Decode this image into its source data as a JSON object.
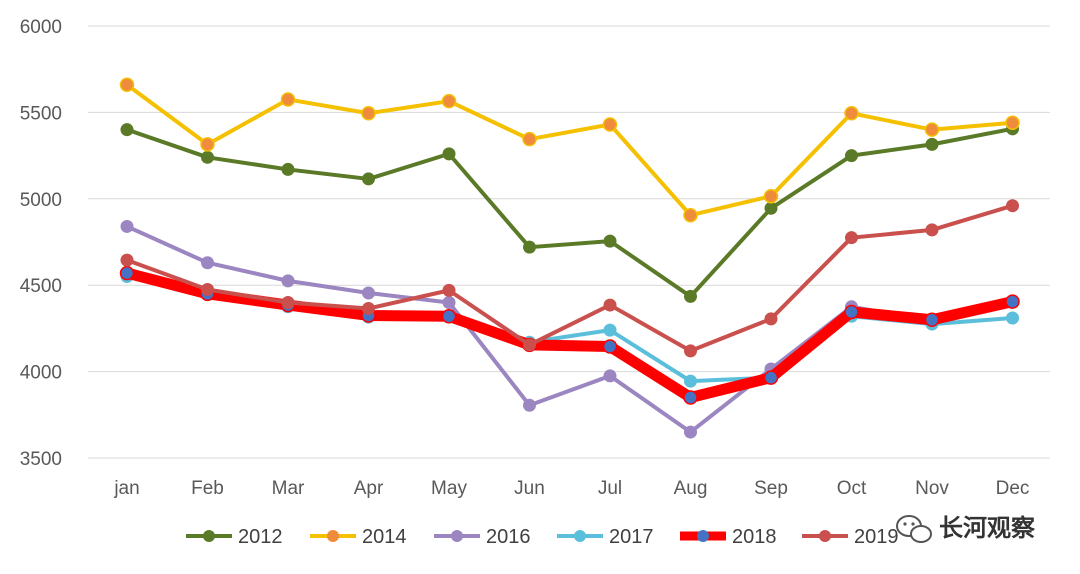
{
  "chart_data": {
    "type": "line",
    "categories": [
      "jan",
      "Feb",
      "Mar",
      "Apr",
      "May",
      "Jun",
      "Jul",
      "Aug",
      "Sep",
      "Oct",
      "Nov",
      "Dec"
    ],
    "ylim": [
      3500,
      6000
    ],
    "yticks": [
      3500,
      4000,
      4500,
      5000,
      5500,
      6000
    ],
    "grid": true,
    "legend_position": "bottom",
    "series": [
      {
        "name": "2012",
        "color": "#5a7a28",
        "values": [
          5400,
          5240,
          5170,
          5115,
          5260,
          4720,
          4755,
          4435,
          4945,
          5250,
          5315,
          5405
        ]
      },
      {
        "name": "2014",
        "color": "#f5c000",
        "marker_color": "#ef8c3c",
        "values": [
          5660,
          5315,
          5575,
          5495,
          5565,
          5345,
          5430,
          4905,
          5015,
          5495,
          5400,
          5440
        ]
      },
      {
        "name": "2016",
        "color": "#9b86c2",
        "values": [
          4840,
          4630,
          4525,
          4455,
          4400,
          3805,
          3975,
          3650,
          4015,
          4375,
          4295,
          4405
        ]
      },
      {
        "name": "2017",
        "color": "#5bbfdc",
        "values": [
          4550,
          4455,
          4375,
          4315,
          4315,
          4170,
          4240,
          3945,
          3965,
          4320,
          4275,
          4310
        ]
      },
      {
        "name": "2018",
        "color": "#ff0000",
        "marker_color": "#4472c4",
        "emphasis": true,
        "values": [
          4570,
          4450,
          4385,
          4325,
          4320,
          4155,
          4145,
          3850,
          3965,
          4345,
          4300,
          4405
        ]
      },
      {
        "name": "2019",
        "color": "#c9504d",
        "values": [
          4645,
          4475,
          4400,
          4365,
          4470,
          4155,
          4385,
          4120,
          4305,
          4775,
          4820,
          4960
        ]
      }
    ]
  },
  "watermark": {
    "text": "长河观察",
    "icon": "wechat-icon"
  }
}
